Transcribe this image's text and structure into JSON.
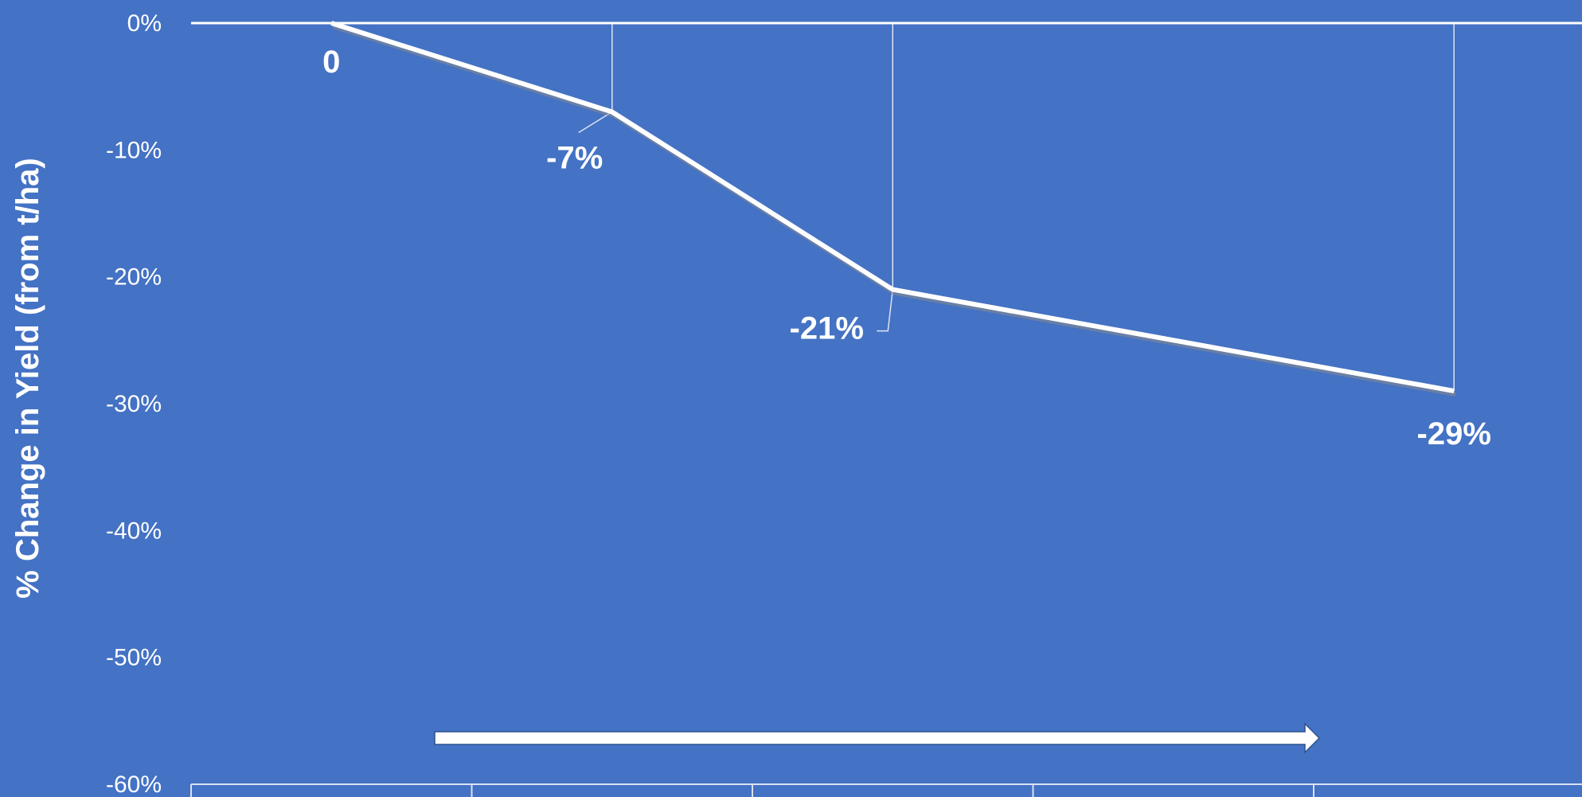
{
  "chart_data": {
    "type": "line",
    "ylabel": "% Change in Yield (from t/ha)",
    "ylim": [
      -60,
      0
    ],
    "y_ticks": [
      "0%",
      "-10%",
      "-20%",
      "-30%",
      "-40%",
      "-50%",
      "-60%"
    ],
    "x_category_count": 5,
    "series": [
      {
        "x": [
          0.5,
          1.5,
          2.5,
          4.5
        ],
        "values": [
          0,
          -7,
          -21,
          -29
        ],
        "data_labels": [
          "0",
          "-7%",
          "-21%",
          "-29%"
        ]
      }
    ],
    "grid": true,
    "colors": {
      "background": "#4472c4",
      "line": "#ffffff",
      "text": "#ffffff"
    }
  },
  "annotation": {
    "arrow_direction": "right"
  }
}
